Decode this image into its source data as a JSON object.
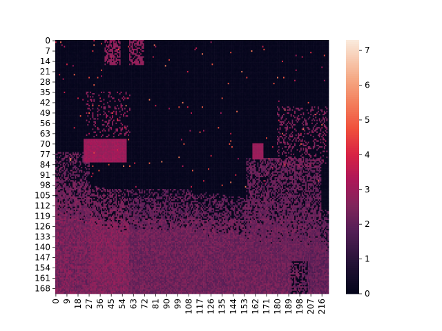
{
  "chart_data": {
    "type": "heatmap",
    "title": "",
    "xlabel": "",
    "ylabel": "",
    "rows": 172,
    "cols": 222,
    "x_tick_labels": [
      "0",
      "9",
      "18",
      "27",
      "36",
      "45",
      "54",
      "63",
      "72",
      "81",
      "90",
      "99",
      "108",
      "117",
      "126",
      "135",
      "144",
      "153",
      "162",
      "171",
      "180",
      "189",
      "198",
      "207",
      "216"
    ],
    "y_tick_labels": [
      "0",
      "7",
      "14",
      "21",
      "28",
      "35",
      "42",
      "49",
      "56",
      "63",
      "70",
      "77",
      "84",
      "91",
      "98",
      "105",
      "112",
      "119",
      "126",
      "133",
      "140",
      "147",
      "154",
      "161",
      "168"
    ],
    "colorbar": {
      "min": 0,
      "max": 7.3,
      "tick_labels": [
        "0",
        "1",
        "2",
        "3",
        "4",
        "5",
        "6",
        "7"
      ],
      "colormap": "rocket"
    },
    "value_range": [
      0,
      7.3
    ],
    "description_regions": [
      {
        "area": "dark background (upper half)",
        "value": 0.1
      },
      {
        "area": "rectangular patch rows 67-82, cols 23-57",
        "value": 3.0
      },
      {
        "area": "patch rows 0-16, cols 40-72",
        "value": 2.8
      },
      {
        "area": "lower floor rows 100-172",
        "value": 2.6
      },
      {
        "area": "right figure rows 80-150, cols 150-215",
        "value": 2.2
      },
      {
        "area": "sparse bright specks",
        "value": 4.5
      }
    ]
  }
}
